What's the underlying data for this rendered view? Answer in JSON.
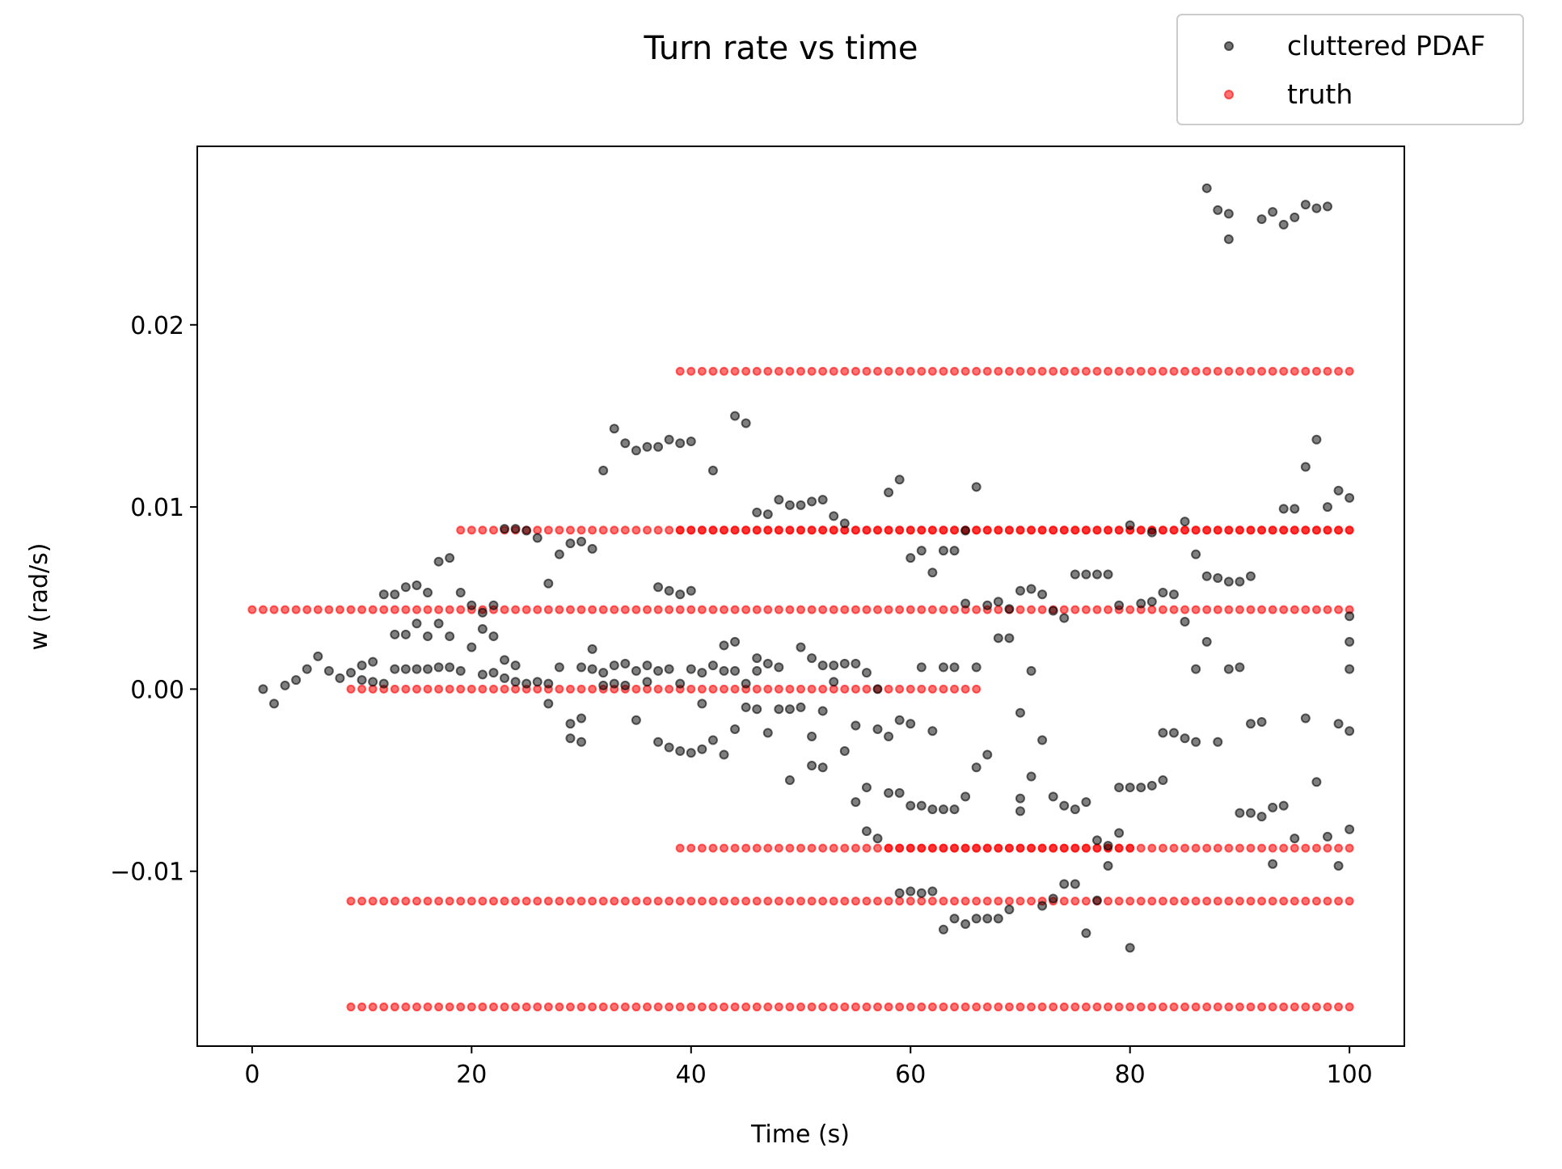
{
  "chart_data": {
    "type": "scatter",
    "title": "Turn rate vs time",
    "xlabel": "Time (s)",
    "ylabel": "w (rad/s)",
    "xlim": [
      -5,
      105
    ],
    "ylim": [
      -0.0196,
      0.0298
    ],
    "xticks": [
      0,
      20,
      40,
      60,
      80,
      100
    ],
    "xtick_labels": [
      "0",
      "20",
      "40",
      "60",
      "80",
      "100"
    ],
    "yticks": [
      -0.01,
      0.0,
      0.01,
      0.02
    ],
    "ytick_labels": [
      "−0.01",
      "0.00",
      "0.01",
      "0.02"
    ],
    "grid": false,
    "legend_position": "top-right (outside plot)",
    "colors": {
      "cluttered": "#000000",
      "truth": "#ff0000"
    },
    "truth_tracks": [
      {
        "w": 0.00436,
        "t_start": 0,
        "t_end": 100,
        "dt": 1
      },
      {
        "w": 0.0,
        "t_start": 9,
        "t_end": 66,
        "dt": 1
      },
      {
        "w": -0.01164,
        "t_start": 9,
        "t_end": 100,
        "dt": 1
      },
      {
        "w": -0.01745,
        "t_start": 9,
        "t_end": 100,
        "dt": 1
      },
      {
        "w": 0.00873,
        "t_start": 19,
        "t_end": 100,
        "dt": 1
      },
      {
        "w": 0.01745,
        "t_start": 39,
        "t_end": 100,
        "dt": 1
      },
      {
        "w": -0.00873,
        "t_start": 39,
        "t_end": 100,
        "dt": 1
      },
      {
        "w": 0.00873,
        "t_start": 39,
        "t_end": 100,
        "dt": 1
      },
      {
        "w": -0.00873,
        "t_start": 58,
        "t_end": 80,
        "dt": 1
      }
    ],
    "series": [
      {
        "name": "cluttered PDAF",
        "points": [
          [
            1,
            0.0
          ],
          [
            2,
            -0.0008
          ],
          [
            3,
            0.0002
          ],
          [
            4,
            0.0005
          ],
          [
            5,
            0.0011
          ],
          [
            6,
            0.0018
          ],
          [
            7,
            0.001
          ],
          [
            8,
            0.0006
          ],
          [
            9,
            0.0009
          ],
          [
            10,
            0.0005
          ],
          [
            10,
            0.0013
          ],
          [
            11,
            0.0015
          ],
          [
            11,
            0.0004
          ],
          [
            12,
            0.0052
          ],
          [
            12,
            0.0003
          ],
          [
            13,
            0.0052
          ],
          [
            13,
            0.003
          ],
          [
            13,
            0.0011
          ],
          [
            14,
            0.0056
          ],
          [
            14,
            0.003
          ],
          [
            14,
            0.0011
          ],
          [
            15,
            0.0057
          ],
          [
            15,
            0.0036
          ],
          [
            15,
            0.0011
          ],
          [
            16,
            0.0053
          ],
          [
            16,
            0.0029
          ],
          [
            16,
            0.0011
          ],
          [
            17,
            0.007
          ],
          [
            17,
            0.0036
          ],
          [
            17,
            0.0012
          ],
          [
            18,
            0.0072
          ],
          [
            18,
            0.0029
          ],
          [
            18,
            0.0012
          ],
          [
            19,
            0.0053
          ],
          [
            19,
            0.001
          ],
          [
            20,
            0.0046
          ],
          [
            20,
            0.0023
          ],
          [
            21,
            0.0042
          ],
          [
            21,
            0.0033
          ],
          [
            21,
            0.0008
          ],
          [
            22,
            0.0046
          ],
          [
            22,
            0.0029
          ],
          [
            22,
            0.0009
          ],
          [
            23,
            0.0088
          ],
          [
            23,
            0.0016
          ],
          [
            23,
            0.0006
          ],
          [
            24,
            0.0088
          ],
          [
            24,
            0.0013
          ],
          [
            24,
            0.0004
          ],
          [
            25,
            0.0087
          ],
          [
            25,
            0.0003
          ],
          [
            26,
            0.0083
          ],
          [
            26,
            0.0004
          ],
          [
            27,
            0.0058
          ],
          [
            27,
            0.0003
          ],
          [
            27,
            -0.0008
          ],
          [
            28,
            0.0074
          ],
          [
            28,
            0.0012
          ],
          [
            29,
            0.008
          ],
          [
            29,
            -0.0019
          ],
          [
            29,
            -0.0027
          ],
          [
            30,
            0.0081
          ],
          [
            30,
            -0.0016
          ],
          [
            30,
            -0.0029
          ],
          [
            30,
            0.0012
          ],
          [
            31,
            0.0077
          ],
          [
            31,
            0.0022
          ],
          [
            31,
            0.0011
          ],
          [
            32,
            0.012
          ],
          [
            32,
            0.0009
          ],
          [
            32,
            0.0002
          ],
          [
            33,
            0.0143
          ],
          [
            33,
            0.0013
          ],
          [
            33,
            0.0003
          ],
          [
            34,
            0.0135
          ],
          [
            34,
            0.0014
          ],
          [
            34,
            0.0002
          ],
          [
            35,
            0.0131
          ],
          [
            35,
            0.001
          ],
          [
            35,
            -0.0017
          ],
          [
            36,
            0.0133
          ],
          [
            36,
            0.0013
          ],
          [
            36,
            0.0004
          ],
          [
            37,
            0.0133
          ],
          [
            37,
            0.0056
          ],
          [
            37,
            0.001
          ],
          [
            37,
            -0.0029
          ],
          [
            38,
            0.0137
          ],
          [
            38,
            0.0054
          ],
          [
            38,
            0.0011
          ],
          [
            38,
            -0.0032
          ],
          [
            39,
            0.0135
          ],
          [
            39,
            0.0052
          ],
          [
            39,
            0.0003
          ],
          [
            39,
            -0.0034
          ],
          [
            40,
            0.0136
          ],
          [
            40,
            0.0054
          ],
          [
            40,
            0.0011
          ],
          [
            40,
            -0.0035
          ],
          [
            41,
            0.0009
          ],
          [
            41,
            -0.0033
          ],
          [
            41,
            -0.0008
          ],
          [
            42,
            0.012
          ],
          [
            42,
            0.0013
          ],
          [
            42,
            -0.0028
          ],
          [
            43,
            0.0024
          ],
          [
            43,
            0.001
          ],
          [
            43,
            -0.0036
          ],
          [
            44,
            0.015
          ],
          [
            44,
            0.0026
          ],
          [
            44,
            0.001
          ],
          [
            44,
            -0.0022
          ],
          [
            45,
            0.0146
          ],
          [
            45,
            0.0003
          ],
          [
            45,
            -0.001
          ],
          [
            46,
            0.0097
          ],
          [
            46,
            0.0017
          ],
          [
            46,
            0.001
          ],
          [
            46,
            -0.0011
          ],
          [
            47,
            0.0096
          ],
          [
            47,
            0.0014
          ],
          [
            47,
            -0.0024
          ],
          [
            48,
            0.0104
          ],
          [
            48,
            0.0012
          ],
          [
            48,
            -0.0011
          ],
          [
            49,
            0.0101
          ],
          [
            49,
            -0.005
          ],
          [
            49,
            -0.0011
          ],
          [
            50,
            0.0101
          ],
          [
            50,
            0.0023
          ],
          [
            50,
            -0.001
          ],
          [
            51,
            0.0103
          ],
          [
            51,
            0.0017
          ],
          [
            51,
            -0.0026
          ],
          [
            51,
            -0.0042
          ],
          [
            52,
            0.0104
          ],
          [
            52,
            0.0013
          ],
          [
            52,
            -0.0012
          ],
          [
            52,
            -0.0043
          ],
          [
            53,
            0.0095
          ],
          [
            53,
            0.0013
          ],
          [
            53,
            0.0004
          ],
          [
            54,
            0.0091
          ],
          [
            54,
            0.0014
          ],
          [
            54,
            -0.0034
          ],
          [
            55,
            -0.0062
          ],
          [
            55,
            0.0014
          ],
          [
            55,
            -0.002
          ],
          [
            56,
            -0.0078
          ],
          [
            56,
            -0.0054
          ],
          [
            56,
            0.0009
          ],
          [
            57,
            -0.0082
          ],
          [
            57,
            -0.0022
          ],
          [
            57,
            0.0
          ],
          [
            58,
            0.0108
          ],
          [
            58,
            -0.0057
          ],
          [
            58,
            -0.0026
          ],
          [
            59,
            0.0115
          ],
          [
            59,
            -0.0057
          ],
          [
            59,
            -0.0017
          ],
          [
            59,
            -0.0112
          ],
          [
            60,
            0.0072
          ],
          [
            60,
            -0.0064
          ],
          [
            60,
            -0.0019
          ],
          [
            60,
            -0.0111
          ],
          [
            61,
            0.0076
          ],
          [
            61,
            -0.0064
          ],
          [
            61,
            0.0012
          ],
          [
            61,
            -0.0112
          ],
          [
            62,
            0.0064
          ],
          [
            62,
            -0.0066
          ],
          [
            62,
            -0.0023
          ],
          [
            62,
            -0.0111
          ],
          [
            63,
            0.0076
          ],
          [
            63,
            -0.0066
          ],
          [
            63,
            -0.0132
          ],
          [
            63,
            0.0012
          ],
          [
            64,
            0.0076
          ],
          [
            64,
            -0.0066
          ],
          [
            64,
            -0.0126
          ],
          [
            64,
            0.0012
          ],
          [
            65,
            0.0047
          ],
          [
            65,
            -0.0059
          ],
          [
            65,
            -0.0129
          ],
          [
            65,
            0.0087
          ],
          [
            66,
            0.0111
          ],
          [
            66,
            -0.0043
          ],
          [
            66,
            -0.0126
          ],
          [
            66,
            0.0012
          ],
          [
            67,
            0.0046
          ],
          [
            67,
            -0.0036
          ],
          [
            67,
            -0.0126
          ],
          [
            68,
            0.0048
          ],
          [
            68,
            0.0028
          ],
          [
            68,
            -0.0126
          ],
          [
            69,
            0.0044
          ],
          [
            69,
            0.0028
          ],
          [
            69,
            -0.0121
          ],
          [
            70,
            0.0054
          ],
          [
            70,
            -0.0013
          ],
          [
            70,
            -0.006
          ],
          [
            70,
            -0.0067
          ],
          [
            71,
            0.0055
          ],
          [
            71,
            -0.0048
          ],
          [
            71,
            0.001
          ],
          [
            72,
            0.0052
          ],
          [
            72,
            -0.0119
          ],
          [
            72,
            -0.0028
          ],
          [
            73,
            0.0043
          ],
          [
            73,
            -0.0059
          ],
          [
            73,
            -0.0115
          ],
          [
            74,
            0.0039
          ],
          [
            74,
            -0.0107
          ],
          [
            74,
            -0.0064
          ],
          [
            75,
            0.0063
          ],
          [
            75,
            -0.0107
          ],
          [
            75,
            -0.0066
          ],
          [
            76,
            0.0063
          ],
          [
            76,
            -0.0134
          ],
          [
            76,
            -0.0062
          ],
          [
            77,
            0.0063
          ],
          [
            77,
            -0.0116
          ],
          [
            77,
            -0.0083
          ],
          [
            78,
            0.0063
          ],
          [
            78,
            -0.0097
          ],
          [
            78,
            -0.0086
          ],
          [
            79,
            0.0046
          ],
          [
            79,
            -0.0079
          ],
          [
            79,
            -0.0054
          ],
          [
            80,
            0.009
          ],
          [
            80,
            -0.0142
          ],
          [
            80,
            -0.0054
          ],
          [
            81,
            0.0047
          ],
          [
            81,
            -0.0054
          ],
          [
            82,
            0.0086
          ],
          [
            82,
            0.0048
          ],
          [
            82,
            -0.0053
          ],
          [
            83,
            0.0053
          ],
          [
            83,
            -0.005
          ],
          [
            83,
            -0.0024
          ],
          [
            84,
            0.0052
          ],
          [
            84,
            -0.0024
          ],
          [
            85,
            0.0092
          ],
          [
            85,
            0.0037
          ],
          [
            85,
            -0.0027
          ],
          [
            86,
            0.0074
          ],
          [
            86,
            0.0011
          ],
          [
            86,
            -0.0029
          ],
          [
            87,
            0.0275
          ],
          [
            87,
            0.0062
          ],
          [
            87,
            0.0026
          ],
          [
            88,
            0.0263
          ],
          [
            88,
            0.0061
          ],
          [
            88,
            -0.0029
          ],
          [
            89,
            0.0261
          ],
          [
            89,
            0.0247
          ],
          [
            89,
            0.0059
          ],
          [
            89,
            0.0011
          ],
          [
            90,
            0.0059
          ],
          [
            90,
            -0.0068
          ],
          [
            90,
            0.0012
          ],
          [
            91,
            0.0062
          ],
          [
            91,
            -0.0068
          ],
          [
            91,
            -0.0019
          ],
          [
            92,
            0.0258
          ],
          [
            92,
            -0.007
          ],
          [
            92,
            -0.0018
          ],
          [
            93,
            0.0262
          ],
          [
            93,
            -0.0065
          ],
          [
            93,
            -0.0096
          ],
          [
            94,
            0.0255
          ],
          [
            94,
            0.0099
          ],
          [
            94,
            -0.0064
          ],
          [
            95,
            0.0259
          ],
          [
            95,
            0.0099
          ],
          [
            95,
            -0.0082
          ],
          [
            96,
            0.0266
          ],
          [
            96,
            0.0122
          ],
          [
            96,
            -0.0016
          ],
          [
            97,
            0.0264
          ],
          [
            97,
            0.0137
          ],
          [
            97,
            -0.0051
          ],
          [
            98,
            0.0265
          ],
          [
            98,
            0.01
          ],
          [
            98,
            -0.0081
          ],
          [
            99,
            0.0109
          ],
          [
            99,
            -0.0097
          ],
          [
            99,
            -0.0019
          ],
          [
            100,
            0.0105
          ],
          [
            100,
            0.0011
          ],
          [
            100,
            -0.0077
          ],
          [
            100,
            0.0026
          ],
          [
            100,
            0.004
          ],
          [
            100,
            -0.0023
          ]
        ]
      },
      {
        "name": "truth"
      }
    ]
  }
}
